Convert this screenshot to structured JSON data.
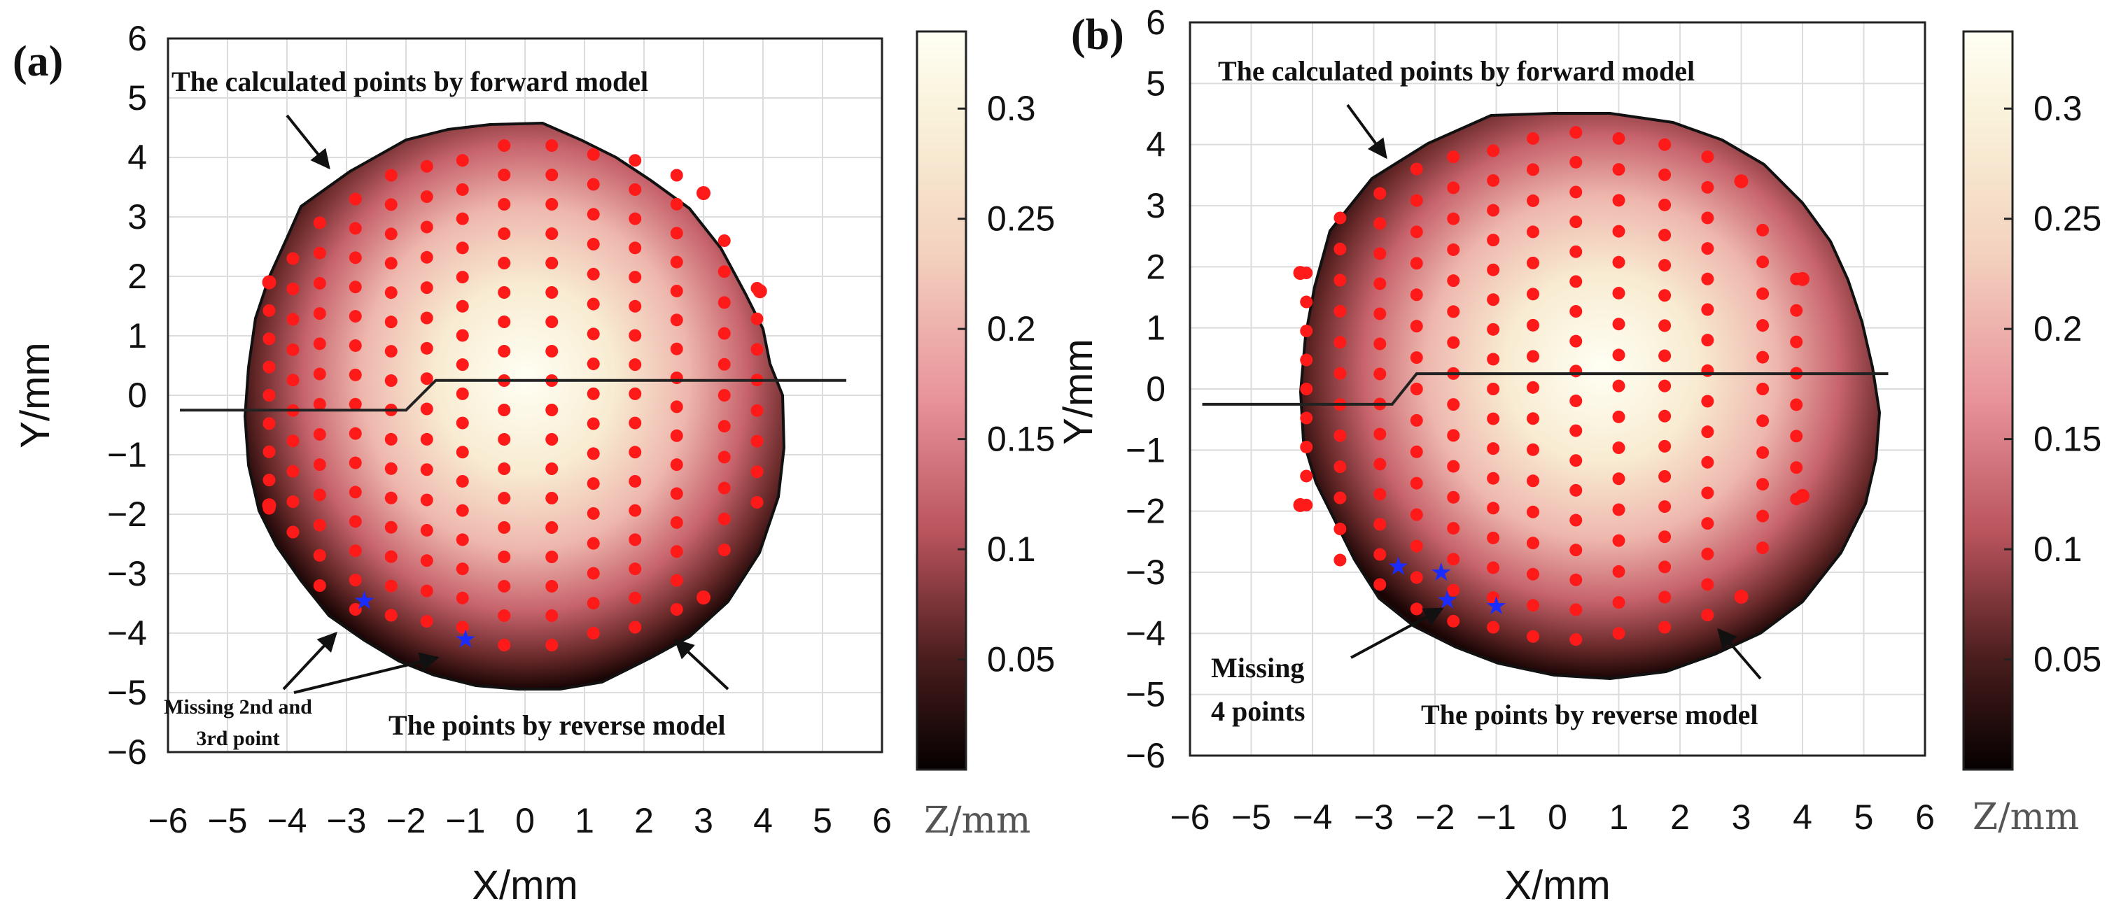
{
  "figure": {
    "colorbar_label": "Z/mm"
  },
  "chart_data": [
    {
      "type": "heatmap",
      "panel_label": "(a)",
      "xlabel": "X/mm",
      "ylabel": "Y/mm",
      "xlim": [
        -6,
        6
      ],
      "ylim": [
        -6,
        6
      ],
      "xticks": [
        "−6",
        "−5",
        "−4",
        "−3",
        "−2",
        "−1",
        "0",
        "1",
        "2",
        "3",
        "4",
        "5",
        "6"
      ],
      "yticks": [
        "6",
        "5",
        "4",
        "3",
        "2",
        "1",
        "0",
        "−1",
        "−2",
        "−3",
        "−4",
        "−5",
        "−6"
      ],
      "grid": true,
      "surface": {
        "max_z": 0.33,
        "min_z": 0.0,
        "radius_mm": 4.5
      },
      "colorbar": {
        "label": "Z/mm",
        "range": [
          0,
          0.335
        ],
        "ticks": [
          "0.3",
          "0.25",
          "0.2",
          "0.15",
          "0.1",
          "0.05"
        ]
      },
      "section_line": {
        "points": [
          [
            -5.8,
            -0.25
          ],
          [
            -2.0,
            -0.25
          ],
          [
            -1.5,
            0.25
          ],
          [
            5.4,
            0.25
          ]
        ]
      },
      "red_point_columns": [
        {
          "x": -4.3,
          "y_from": -1.9,
          "y_to": 1.9
        },
        {
          "x": -3.9,
          "y_from": -2.3,
          "y_to": 2.3
        },
        {
          "x": -3.45,
          "y_from": -3.2,
          "y_to": 2.9
        },
        {
          "x": -2.85,
          "y_from": -3.6,
          "y_to": 3.3
        },
        {
          "x": -2.25,
          "y_from": -3.7,
          "y_to": 3.7
        },
        {
          "x": -1.65,
          "y_from": -3.8,
          "y_to": 3.85
        },
        {
          "x": -1.05,
          "y_from": -3.9,
          "y_to": 3.95
        },
        {
          "x": -0.35,
          "y_from": -4.2,
          "y_to": 4.2
        },
        {
          "x": 0.45,
          "y_from": -4.2,
          "y_to": 4.2
        },
        {
          "x": 1.15,
          "y_from": -4.0,
          "y_to": 4.05
        },
        {
          "x": 1.85,
          "y_from": -3.9,
          "y_to": 3.95
        },
        {
          "x": 2.55,
          "y_from": -3.6,
          "y_to": 3.7
        },
        {
          "x": 3.35,
          "y_from": -2.6,
          "y_to": 2.6
        },
        {
          "x": 3.9,
          "y_from": -1.8,
          "y_to": 1.8
        }
      ],
      "outlier_points": [
        {
          "x": 3.0,
          "y": 3.4
        },
        {
          "x": 3.0,
          "y": -3.4
        },
        {
          "x": 3.95,
          "y": 1.75
        },
        {
          "x": -4.3,
          "y": 1.9
        },
        {
          "x": -4.3,
          "y": -1.85
        }
      ],
      "missing_points": [
        {
          "x": -2.7,
          "y": -3.45
        },
        {
          "x": -1.0,
          "y": -4.1
        }
      ],
      "annotations": [
        {
          "text": "The calculated points by forward model"
        },
        {
          "text": "The points by reverse model"
        },
        {
          "text": "Missing 2nd and"
        },
        {
          "text": "3rd point"
        }
      ]
    },
    {
      "type": "heatmap",
      "panel_label": "(b)",
      "xlabel": "X/mm",
      "ylabel": "Y/mm",
      "xlim": [
        -6,
        6
      ],
      "ylim": [
        -6,
        6
      ],
      "xticks": [
        "−6",
        "−5",
        "−4",
        "−3",
        "−2",
        "−1",
        "0",
        "1",
        "2",
        "3",
        "4",
        "5",
        "6"
      ],
      "yticks": [
        "6",
        "5",
        "4",
        "3",
        "2",
        "1",
        "0",
        "−1",
        "−2",
        "−3",
        "−4",
        "−5",
        "−6"
      ],
      "grid": true,
      "surface": {
        "max_z": 0.33,
        "min_z": 0.0,
        "radius_mm": 4.5
      },
      "colorbar": {
        "label": "Z/mm",
        "range": [
          0,
          0.335
        ],
        "ticks": [
          "0.3",
          "0.25",
          "0.2",
          "0.15",
          "0.1",
          "0.05"
        ]
      },
      "section_line": {
        "points": [
          [
            -5.8,
            -0.25
          ],
          [
            -2.7,
            -0.25
          ],
          [
            -2.3,
            0.25
          ],
          [
            5.4,
            0.25
          ]
        ]
      },
      "red_point_columns": [
        {
          "x": -4.1,
          "y_from": -1.9,
          "y_to": 1.9
        },
        {
          "x": -3.55,
          "y_from": -2.8,
          "y_to": 2.8
        },
        {
          "x": -2.9,
          "y_from": -3.2,
          "y_to": 3.2
        },
        {
          "x": -2.3,
          "y_from": -3.6,
          "y_to": 3.6
        },
        {
          "x": -1.7,
          "y_from": -3.8,
          "y_to": 3.8
        },
        {
          "x": -1.05,
          "y_from": -3.9,
          "y_to": 3.9
        },
        {
          "x": -0.4,
          "y_from": -4.05,
          "y_to": 4.1
        },
        {
          "x": 0.3,
          "y_from": -4.1,
          "y_to": 4.2
        },
        {
          "x": 1.0,
          "y_from": -4.0,
          "y_to": 4.1
        },
        {
          "x": 1.75,
          "y_from": -3.9,
          "y_to": 4.0
        },
        {
          "x": 2.45,
          "y_from": -3.7,
          "y_to": 3.8
        },
        {
          "x": 3.35,
          "y_from": -2.6,
          "y_to": 2.6
        },
        {
          "x": 3.9,
          "y_from": -1.8,
          "y_to": 1.8
        }
      ],
      "outlier_points": [
        {
          "x": 3.0,
          "y": 3.4
        },
        {
          "x": 3.0,
          "y": -3.4
        },
        {
          "x": 4.0,
          "y": 1.8
        },
        {
          "x": -4.2,
          "y": 1.9
        },
        {
          "x": -4.2,
          "y": -1.9
        },
        {
          "x": 4.0,
          "y": -1.75
        }
      ],
      "missing_points": [
        {
          "x": -2.6,
          "y": -2.9
        },
        {
          "x": -1.9,
          "y": -3.0
        },
        {
          "x": -1.8,
          "y": -3.45
        },
        {
          "x": -1.0,
          "y": -3.55
        }
      ],
      "annotations": [
        {
          "text": "The calculated points by forward model"
        },
        {
          "text": "The points by reverse model"
        },
        {
          "text": "Missing"
        },
        {
          "text": "4 points"
        }
      ]
    }
  ]
}
